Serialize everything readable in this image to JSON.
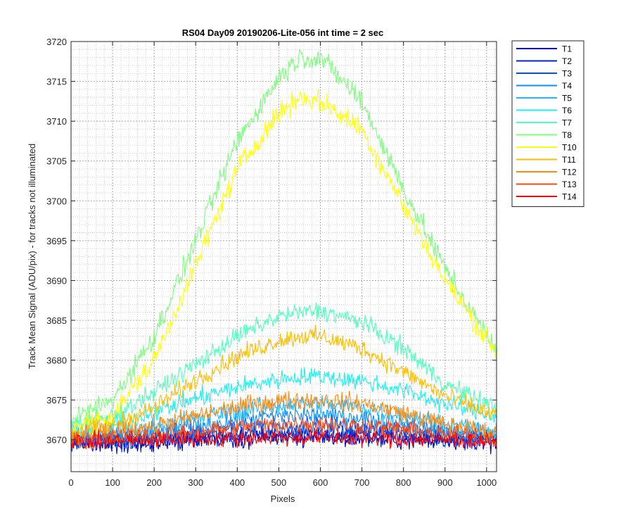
{
  "chart_data": {
    "type": "line",
    "title": "RS04 Day09 20190206-Lite-056 int time = 2 sec",
    "xlabel": "Pixels",
    "ylabel": "Track Mean Signal (ADU/pix) - for tracks not illuminated",
    "xlim": [
      0,
      1024
    ],
    "ylim": [
      3666,
      3720
    ],
    "xticks": [
      0,
      100,
      200,
      300,
      400,
      500,
      600,
      700,
      800,
      900,
      1000
    ],
    "yticks": [
      3670,
      3675,
      3680,
      3685,
      3690,
      3695,
      3700,
      3705,
      3710,
      3715,
      3720
    ],
    "grid": true,
    "minor_grid": true,
    "legend_position": "outside-top-right",
    "x_anchor": [
      0,
      100,
      200,
      300,
      400,
      500,
      550,
      600,
      700,
      800,
      900,
      1024
    ],
    "series": [
      {
        "name": "T1",
        "color": "#0000b4",
        "noise": 1.0,
        "values": [
          3669.5,
          3669.6,
          3669.8,
          3670.0,
          3670.2,
          3670.3,
          3670.3,
          3670.3,
          3670.2,
          3670.0,
          3669.8,
          3669.6
        ]
      },
      {
        "name": "T2",
        "color": "#0022d0",
        "noise": 1.0,
        "values": [
          3669.6,
          3669.7,
          3669.9,
          3670.3,
          3670.6,
          3670.8,
          3670.8,
          3670.8,
          3670.7,
          3670.4,
          3670.0,
          3669.7
        ]
      },
      {
        "name": "T3",
        "color": "#0050f0",
        "noise": 1.0,
        "values": [
          3669.8,
          3670.0,
          3670.4,
          3671.0,
          3671.5,
          3671.8,
          3671.9,
          3671.9,
          3671.7,
          3671.2,
          3670.6,
          3670.1
        ]
      },
      {
        "name": "T4",
        "color": "#0c8cff",
        "noise": 1.0,
        "values": [
          3670.0,
          3670.3,
          3670.9,
          3671.7,
          3672.5,
          3673.0,
          3673.1,
          3673.1,
          3672.8,
          3672.0,
          3671.2,
          3670.4
        ]
      },
      {
        "name": "T5",
        "color": "#20b8ff",
        "noise": 1.0,
        "values": [
          3670.3,
          3670.8,
          3671.6,
          3672.7,
          3673.7,
          3674.3,
          3674.5,
          3674.5,
          3674.1,
          3673.1,
          3672.0,
          3670.9
        ]
      },
      {
        "name": "T6",
        "color": "#22eeee",
        "noise": 1.0,
        "values": [
          3671.0,
          3671.8,
          3673.5,
          3675.2,
          3676.6,
          3677.6,
          3677.9,
          3678.0,
          3677.4,
          3676.2,
          3674.5,
          3673.0
        ]
      },
      {
        "name": "T7",
        "color": "#50ffbc",
        "noise": 1.0,
        "values": [
          3672.0,
          3673.0,
          3676.0,
          3679.5,
          3683.0,
          3685.5,
          3686.0,
          3686.2,
          3684.8,
          3681.5,
          3677.0,
          3674.0
        ]
      },
      {
        "name": "T8",
        "color": "#7cff7c",
        "noise": 1.2,
        "values": [
          3672.5,
          3675.0,
          3683.0,
          3695.0,
          3707.5,
          3715.5,
          3718.0,
          3718.0,
          3712.5,
          3701.5,
          3691.5,
          3681.0
        ]
      },
      {
        "name": "T10",
        "color": "#ffff10",
        "noise": 1.2,
        "values": [
          3671.5,
          3673.0,
          3680.0,
          3692.0,
          3704.0,
          3711.0,
          3713.0,
          3712.5,
          3709.0,
          3699.5,
          3690.0,
          3681.0
        ]
      },
      {
        "name": "T11",
        "color": "#ffbc00",
        "noise": 1.0,
        "values": [
          3671.0,
          3671.8,
          3674.0,
          3677.5,
          3680.5,
          3682.5,
          3683.0,
          3683.0,
          3681.5,
          3678.5,
          3675.5,
          3673.0
        ]
      },
      {
        "name": "T12",
        "color": "#ff8c10",
        "noise": 1.0,
        "values": [
          3670.3,
          3670.9,
          3671.8,
          3673.0,
          3674.2,
          3674.9,
          3675.0,
          3675.0,
          3674.6,
          3673.4,
          3672.0,
          3670.8
        ]
      },
      {
        "name": "T13",
        "color": "#ff4810",
        "noise": 1.0,
        "values": [
          3670.0,
          3670.2,
          3670.6,
          3671.0,
          3671.6,
          3671.9,
          3672.0,
          3672.0,
          3671.8,
          3671.3,
          3670.7,
          3670.2
        ]
      },
      {
        "name": "T14",
        "color": "#ff0000",
        "noise": 0.9,
        "values": [
          3669.8,
          3669.9,
          3670.0,
          3670.1,
          3670.2,
          3670.3,
          3670.3,
          3670.3,
          3670.2,
          3670.1,
          3670.0,
          3669.9
        ]
      }
    ]
  }
}
